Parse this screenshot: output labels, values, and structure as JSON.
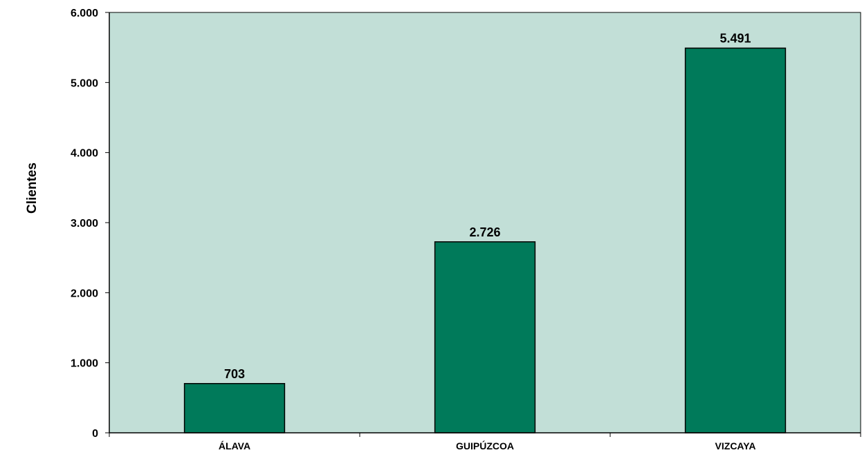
{
  "chart_data": {
    "type": "bar",
    "categories": [
      "ÁLAVA",
      "GUIPÚZCOA",
      "VIZCAYA"
    ],
    "values": [
      703,
      2726,
      5491
    ],
    "data_labels": [
      "703",
      "2.726",
      "5.491"
    ],
    "title": "",
    "xlabel": "",
    "ylabel": "Clientes",
    "ylim": [
      0,
      6000
    ],
    "yticks": [
      0,
      1000,
      2000,
      3000,
      4000,
      5000,
      6000
    ],
    "ytick_labels": [
      "0",
      "1.000",
      "2.000",
      "3.000",
      "4.000",
      "5.000",
      "6.000"
    ],
    "grid": false,
    "legend": "none",
    "colors": {
      "plot_background": "#c2dfd7",
      "bar_fill": "#007a5a",
      "bar_stroke": "#000000",
      "axis": "#000000"
    }
  }
}
